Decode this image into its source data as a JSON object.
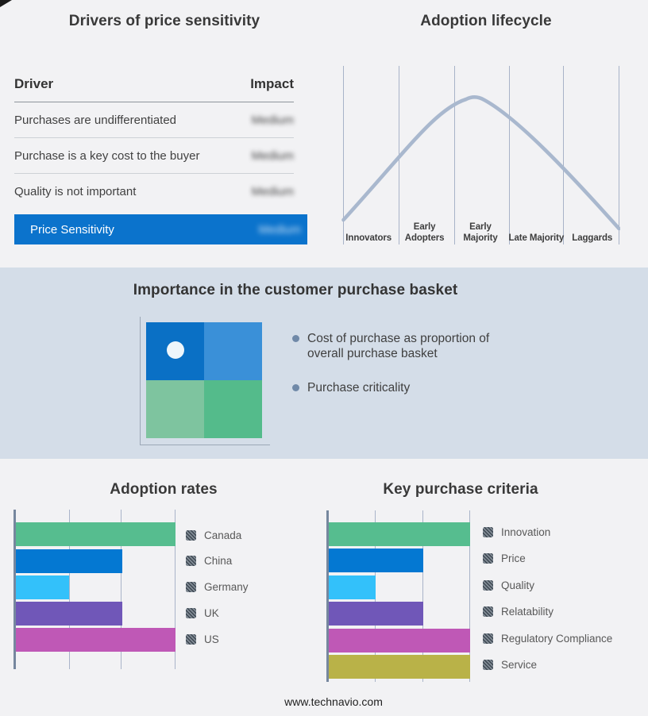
{
  "drivers_panel": {
    "title": "Drivers of price sensitivity",
    "col_driver": "Driver",
    "col_impact": "Impact",
    "rows": [
      {
        "driver": "Purchases are undifferentiated",
        "impact": "Medium"
      },
      {
        "driver": "Purchase is a key cost to the buyer",
        "impact": "Medium"
      },
      {
        "driver": "Quality is not important",
        "impact": "Medium"
      }
    ],
    "summary": {
      "driver": "Price Sensitivity",
      "impact": "Medium"
    }
  },
  "basket_panel": {
    "title": "Importance in the customer purchase basket",
    "bullets": [
      "Cost of purchase as proportion of overall purchase basket",
      "Purchase criticality"
    ]
  },
  "footer": {
    "url": "www.technavio.com"
  },
  "colors": {
    "page_bg": "#f2f2f4",
    "band_bg": "#d4dde8",
    "accent_blue": "#0b73cc",
    "curve": "#a9b8ce",
    "gridline": "#a9b4c9",
    "axis": "#76879e",
    "legend_swatch": "#515b66"
  },
  "chart_data": [
    {
      "type": "line",
      "title": "Adoption lifecycle",
      "categories": [
        "Innovators",
        "Early Adopters",
        "Early Majority",
        "Late Majority",
        "Laggards"
      ],
      "description": "Bell-shaped adoption curve rising from Innovators, peaking in the Early Majority segment, declining through Laggards",
      "curve_points_pct_x_y": [
        [
          0,
          14
        ],
        [
          20,
          51
        ],
        [
          40,
          78
        ],
        [
          48,
          83
        ],
        [
          60,
          72
        ],
        [
          80,
          46
        ],
        [
          100,
          9
        ]
      ],
      "grid": "vertical segment dividers only",
      "legend_position": "none",
      "curve_color": "#a9b8ce"
    },
    {
      "type": "bar",
      "orientation": "horizontal",
      "title": "Adoption rates",
      "categories": [
        "Canada",
        "China",
        "Germany",
        "UK",
        "US"
      ],
      "values": [
        3,
        2,
        1,
        2,
        3
      ],
      "xlim": [
        0,
        3
      ],
      "value_note": "relative units read from unlabeled gridlines",
      "colors": [
        "#56bd8f",
        "#0478d2",
        "#33c1fa",
        "#7057b8",
        "#bf58b6"
      ],
      "legend_position": "right",
      "grid": "vertical gridlines at 1,2,3"
    },
    {
      "type": "bar",
      "orientation": "horizontal",
      "title": "Key purchase criteria",
      "categories": [
        "Innovation",
        "Price",
        "Quality",
        "Relatability",
        "Regulatory Compliance",
        "Service"
      ],
      "values": [
        3,
        2,
        1,
        2,
        3,
        3
      ],
      "xlim": [
        0,
        3
      ],
      "value_note": "relative units read from unlabeled gridlines",
      "colors": [
        "#56bd8f",
        "#0478d2",
        "#33c1fa",
        "#7057b8",
        "#bf58b6",
        "#b9b248"
      ],
      "legend_position": "right",
      "grid": "vertical gridlines at 1,2,3"
    },
    {
      "type": "heatmap",
      "title": "Importance in the customer purchase basket",
      "grid_colors": [
        [
          "#0a70c5",
          "#3a90d8"
        ],
        [
          "#7ec49f",
          "#54bb8b"
        ]
      ],
      "marker": {
        "quadrant": "top-left",
        "shape": "circle",
        "color": "#eef6fb"
      }
    }
  ]
}
